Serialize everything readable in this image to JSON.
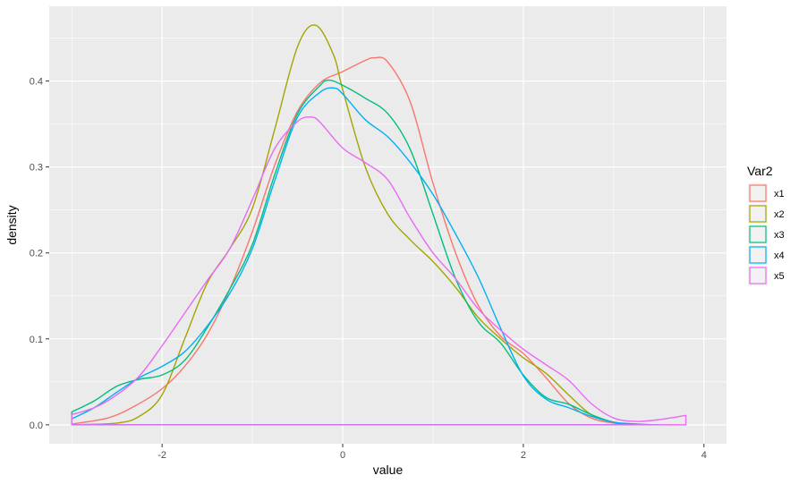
{
  "chart_data": {
    "type": "line",
    "title": "",
    "xlabel": "value",
    "ylabel": "density",
    "xlim": [
      -3.25,
      4.25
    ],
    "ylim": [
      -0.022,
      0.487
    ],
    "x_ticks": [
      -2,
      0,
      2,
      4
    ],
    "y_ticks": [
      0.0,
      0.1,
      0.2,
      0.3,
      0.4
    ],
    "x_tick_labels": [
      "-2",
      "0",
      "2",
      "4"
    ],
    "y_tick_labels": [
      "0.0",
      "0.1",
      "0.2",
      "0.3",
      "0.4"
    ],
    "grid": true,
    "panel_background": "#ebebeb",
    "grid_color": "#ffffff",
    "legend": {
      "title": "Var2",
      "position": "right"
    },
    "series": [
      {
        "name": "x1",
        "color": "#f8766d",
        "x": [
          -3.0,
          -2.6,
          -2.3,
          -2.0,
          -1.75,
          -1.5,
          -1.25,
          -1.0,
          -0.75,
          -0.5,
          -0.25,
          0.0,
          0.25,
          0.35,
          0.5,
          0.75,
          1.0,
          1.25,
          1.5,
          1.75,
          2.0,
          2.25,
          2.5,
          2.75,
          3.0,
          3.2
        ],
        "y": [
          0.001,
          0.008,
          0.022,
          0.042,
          0.068,
          0.105,
          0.158,
          0.225,
          0.303,
          0.365,
          0.398,
          0.411,
          0.424,
          0.427,
          0.422,
          0.375,
          0.281,
          0.2,
          0.139,
          0.103,
          0.083,
          0.055,
          0.025,
          0.008,
          0.002,
          0.0
        ]
      },
      {
        "name": "x2",
        "color": "#a3a500",
        "x": [
          -3.0,
          -2.5,
          -2.25,
          -2.0,
          -1.75,
          -1.5,
          -1.25,
          -1.0,
          -0.75,
          -0.5,
          -0.3,
          -0.1,
          0.0,
          0.25,
          0.5,
          0.75,
          1.0,
          1.25,
          1.5,
          1.75,
          2.0,
          2.25,
          2.5,
          2.75,
          3.0,
          3.2
        ],
        "y": [
          0.0,
          0.002,
          0.01,
          0.035,
          0.1,
          0.165,
          0.205,
          0.252,
          0.345,
          0.44,
          0.465,
          0.43,
          0.39,
          0.3,
          0.245,
          0.215,
          0.19,
          0.16,
          0.125,
          0.1,
          0.078,
          0.06,
          0.035,
          0.012,
          0.003,
          0.0
        ]
      },
      {
        "name": "x3",
        "color": "#00bf7d",
        "x": [
          -3.0,
          -2.75,
          -2.5,
          -2.25,
          -2.0,
          -1.75,
          -1.5,
          -1.25,
          -1.0,
          -0.75,
          -0.5,
          -0.25,
          -0.15,
          0.0,
          0.25,
          0.5,
          0.75,
          1.0,
          1.25,
          1.5,
          1.75,
          2.0,
          2.25,
          2.5,
          2.75,
          3.0,
          3.2
        ],
        "y": [
          0.015,
          0.028,
          0.045,
          0.053,
          0.058,
          0.075,
          0.113,
          0.158,
          0.21,
          0.292,
          0.362,
          0.395,
          0.401,
          0.395,
          0.38,
          0.362,
          0.32,
          0.245,
          0.17,
          0.12,
          0.095,
          0.058,
          0.032,
          0.024,
          0.012,
          0.003,
          0.0
        ]
      },
      {
        "name": "x4",
        "color": "#00b0f6",
        "x": [
          -3.0,
          -2.75,
          -2.5,
          -2.25,
          -2.0,
          -1.75,
          -1.5,
          -1.25,
          -1.0,
          -0.75,
          -0.5,
          -0.25,
          -0.1,
          0.0,
          0.25,
          0.5,
          0.75,
          1.0,
          1.25,
          1.5,
          1.75,
          2.0,
          2.25,
          2.5,
          2.75,
          3.0,
          3.25,
          3.5
        ],
        "y": [
          0.007,
          0.02,
          0.038,
          0.055,
          0.068,
          0.085,
          0.115,
          0.153,
          0.205,
          0.285,
          0.358,
          0.387,
          0.392,
          0.385,
          0.355,
          0.335,
          0.305,
          0.268,
          0.222,
          0.172,
          0.112,
          0.057,
          0.03,
          0.02,
          0.01,
          0.003,
          0.001,
          0.0
        ]
      },
      {
        "name": "x5",
        "color": "#e76bf3",
        "x": [
          -3.0,
          -2.75,
          -2.5,
          -2.25,
          -2.0,
          -1.75,
          -1.5,
          -1.25,
          -1.0,
          -0.75,
          -0.5,
          -0.35,
          -0.25,
          0.0,
          0.25,
          0.5,
          0.75,
          1.0,
          1.25,
          1.5,
          1.75,
          2.0,
          2.25,
          2.5,
          2.75,
          3.0,
          3.25,
          3.5,
          3.8
        ],
        "y": [
          0.012,
          0.02,
          0.035,
          0.057,
          0.092,
          0.13,
          0.168,
          0.205,
          0.262,
          0.322,
          0.353,
          0.358,
          0.352,
          0.322,
          0.305,
          0.285,
          0.24,
          0.2,
          0.17,
          0.135,
          0.11,
          0.088,
          0.07,
          0.052,
          0.025,
          0.008,
          0.004,
          0.006,
          0.011
        ]
      }
    ]
  }
}
